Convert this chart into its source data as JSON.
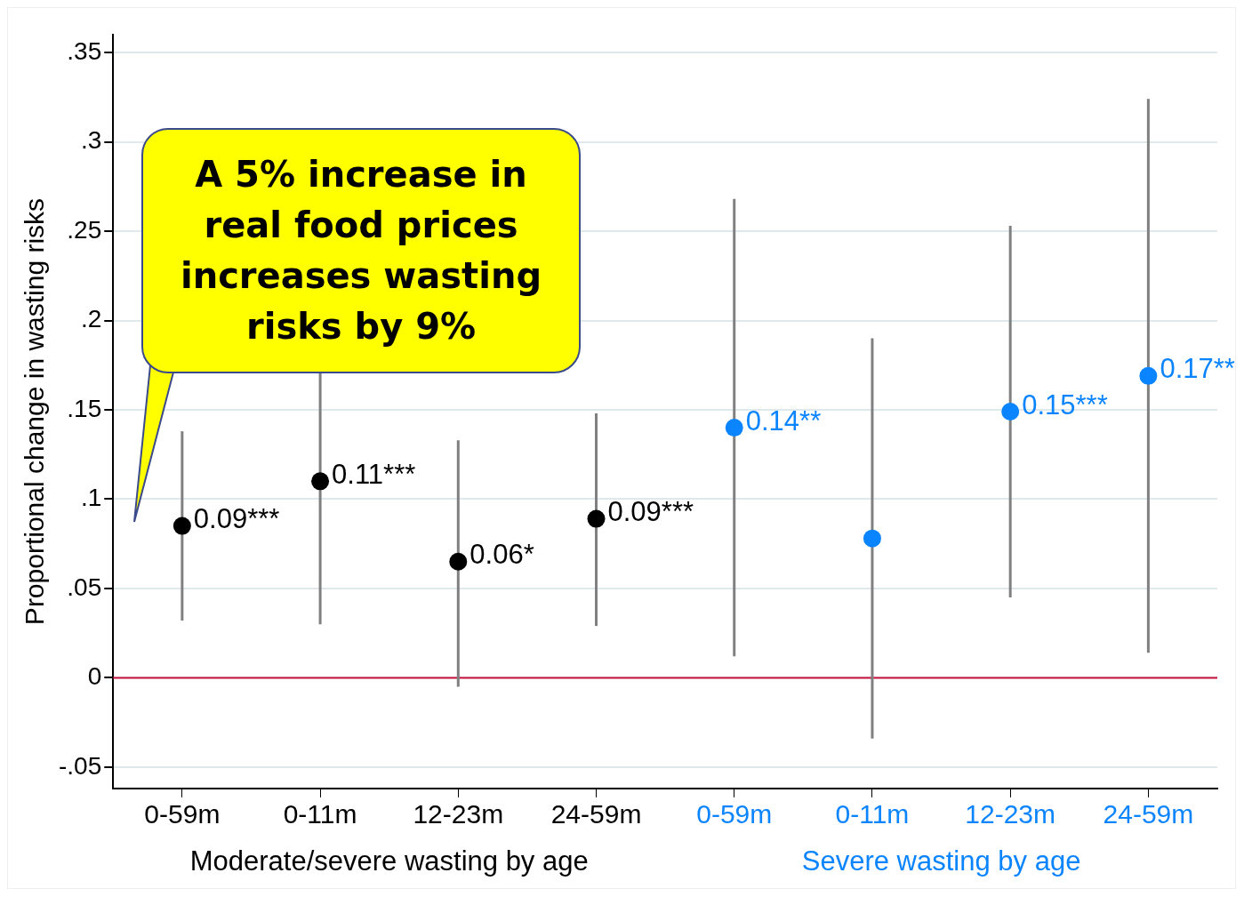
{
  "chart_data": {
    "type": "scatter",
    "ylabel": "Proportional change in wasting risks",
    "categories": [
      "0-59m",
      "0-11m",
      "12-23m",
      "24-59m",
      "0-59m",
      "0-11m",
      "12-23m",
      "24-59m"
    ],
    "series": [
      {
        "name": "Moderate/severe wasting by age",
        "color": "#000000",
        "values": [
          0.085,
          0.11,
          0.065,
          0.089,
          null,
          null,
          null,
          null
        ],
        "errors": [
          [
            0.032,
            0.138
          ],
          [
            0.03,
            0.19
          ],
          [
            -0.005,
            0.133
          ],
          [
            0.029,
            0.148
          ],
          null,
          null,
          null,
          null
        ],
        "value_labels": [
          "0.09***",
          "0.11***",
          "0.06*",
          "0.09***",
          null,
          null,
          null,
          null
        ]
      },
      {
        "name": "Severe wasting by age",
        "color": "#0a84ff",
        "values": [
          null,
          null,
          null,
          null,
          0.14,
          0.078,
          0.149,
          0.169
        ],
        "errors": [
          null,
          null,
          null,
          null,
          [
            0.012,
            0.268
          ],
          [
            -0.034,
            0.19
          ],
          [
            0.045,
            0.253
          ],
          [
            0.014,
            0.324
          ]
        ],
        "value_labels": [
          null,
          null,
          null,
          null,
          "0.14**",
          null,
          "0.15***",
          "0.17**"
        ]
      }
    ],
    "ylim": [
      -0.062,
      0.36
    ],
    "yticks": [
      {
        "value": -0.05,
        "label": "-.05"
      },
      {
        "value": 0,
        "label": "0"
      },
      {
        "value": 0.05,
        "label": ".05"
      },
      {
        "value": 0.1,
        "label": ".1"
      },
      {
        "value": 0.15,
        "label": ".15"
      },
      {
        "value": 0.2,
        "label": ".2"
      },
      {
        "value": 0.25,
        "label": ".25"
      },
      {
        "value": 0.3,
        "label": ".3"
      },
      {
        "value": 0.35,
        "label": ".35"
      }
    ],
    "grid": "y",
    "legend": false,
    "marker": "circle",
    "ref_lines": [
      {
        "axis": "y",
        "value": 0,
        "color": "#c8103c"
      }
    ],
    "annotations": [
      "A 5% increase in real food prices increases wasting risks by 9%"
    ]
  }
}
